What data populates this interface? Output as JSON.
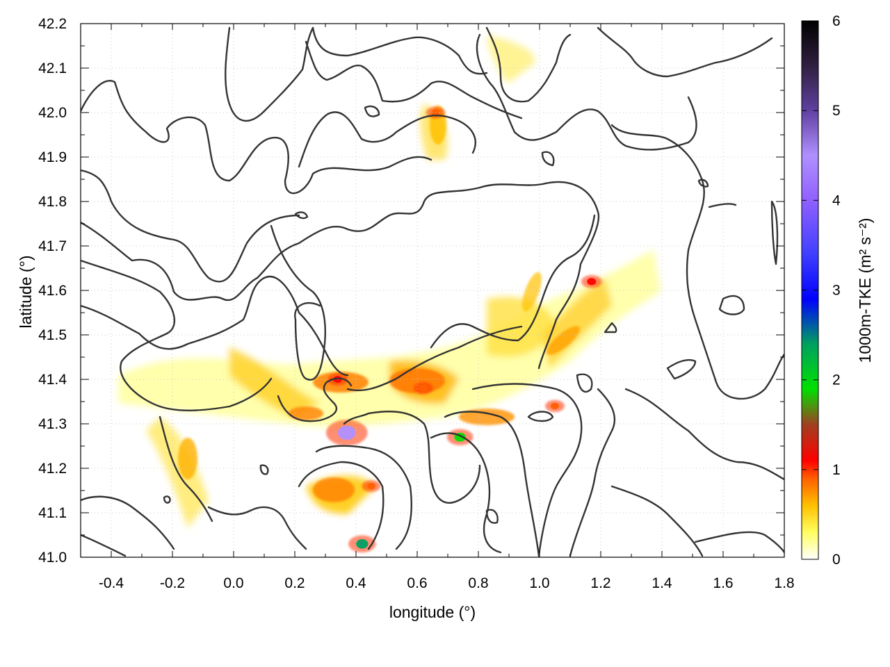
{
  "chart_data": {
    "type": "heatmap",
    "title": "",
    "xlabel": "longitude (°)",
    "ylabel": "latitude (°)",
    "xlim": [
      -0.5,
      1.8
    ],
    "ylim": [
      41.0,
      42.2
    ],
    "x_ticks": [
      "-0.4",
      "-0.2",
      "0.0",
      "0.2",
      "0.4",
      "0.6",
      "0.8",
      "1.0",
      "1.2",
      "1.4",
      "1.6",
      "1.8"
    ],
    "y_ticks": [
      "41.0",
      "41.1",
      "41.2",
      "41.3",
      "41.4",
      "41.5",
      "41.6",
      "41.7",
      "41.8",
      "41.9",
      "42.0",
      "42.1",
      "42.2"
    ],
    "grid": true,
    "colorbar": {
      "label": "1000m-TKE",
      "units": "(m² s⁻²)",
      "range": [
        0,
        6
      ],
      "ticks": [
        "0",
        "1",
        "2",
        "3",
        "4",
        "5",
        "6"
      ],
      "stops": [
        {
          "value": 0,
          "color": "#ffffff"
        },
        {
          "value": 0.3,
          "color": "#ffff60"
        },
        {
          "value": 0.6,
          "color": "#ffc000"
        },
        {
          "value": 0.9,
          "color": "#ff6000"
        },
        {
          "value": 1.1,
          "color": "#ff0000"
        },
        {
          "value": 1.5,
          "color": "#a04020"
        },
        {
          "value": 1.9,
          "color": "#00e000"
        },
        {
          "value": 2.4,
          "color": "#00a060"
        },
        {
          "value": 2.9,
          "color": "#0000ff"
        },
        {
          "value": 3.4,
          "color": "#4040ff"
        },
        {
          "value": 4.0,
          "color": "#9060ff"
        },
        {
          "value": 4.5,
          "color": "#b090ff"
        },
        {
          "value": 5.0,
          "color": "#6040a0"
        },
        {
          "value": 5.5,
          "color": "#302040"
        },
        {
          "value": 6.0,
          "color": "#000000"
        }
      ]
    },
    "tke_hotspots": [
      {
        "lon": 0.37,
        "lat": 41.28,
        "value": 4.2
      },
      {
        "lon": 0.74,
        "lat": 41.27,
        "value": 1.9
      },
      {
        "lon": 0.42,
        "lat": 41.03,
        "value": 2.1
      },
      {
        "lon": 1.17,
        "lat": 41.62,
        "value": 1.1
      },
      {
        "lon": 0.34,
        "lat": 41.4,
        "value": 1.0
      },
      {
        "lon": 0.66,
        "lat": 42.0,
        "value": 0.8
      },
      {
        "lon": 0.62,
        "lat": 41.38,
        "value": 0.9
      },
      {
        "lon": 0.45,
        "lat": 41.16,
        "value": 0.8
      },
      {
        "lon": 1.05,
        "lat": 41.34,
        "value": 0.9
      }
    ]
  }
}
